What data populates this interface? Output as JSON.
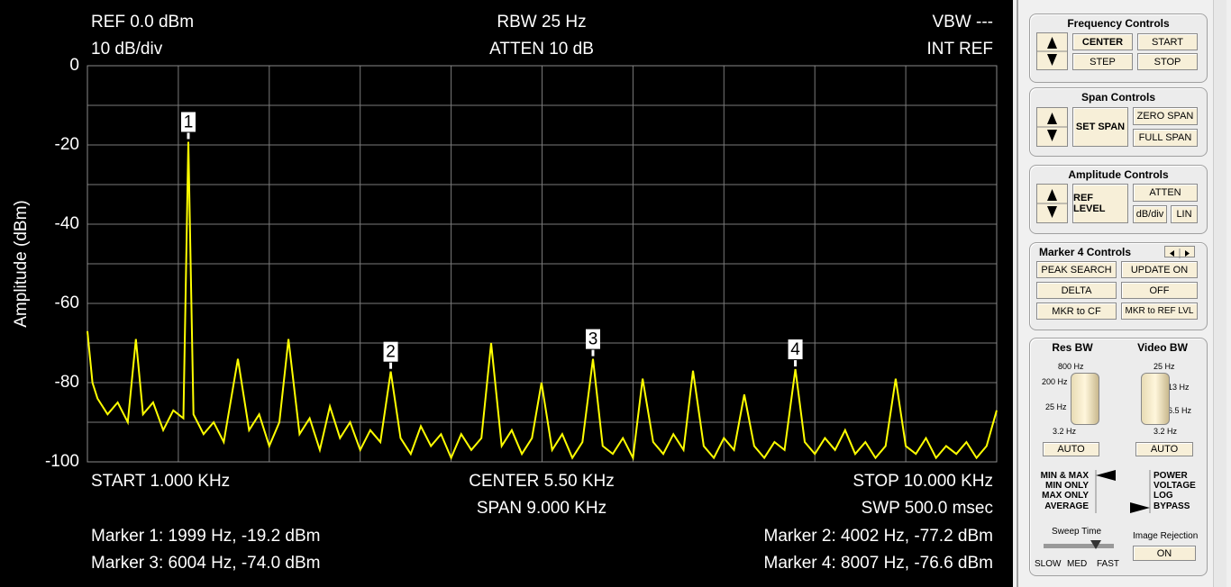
{
  "header": {
    "ref": "REF 0.0 dBm",
    "scale": "10 dB/div",
    "rbw": "RBW 25 Hz",
    "atten": "ATTEN 10 dB",
    "vbw": "VBW ---",
    "intref": "INT REF"
  },
  "chart_data": {
    "type": "line",
    "ylabel": "Amplitude (dBm)",
    "color": "#ffff00",
    "xlim": [
      1000,
      10000
    ],
    "ylim": [
      -100,
      0
    ],
    "yticks": [
      0,
      -20,
      -40,
      -60,
      -80,
      -100
    ],
    "grid": true,
    "x": [
      1000,
      1050,
      1100,
      1200,
      1300,
      1400,
      1480,
      1550,
      1650,
      1750,
      1850,
      1950,
      1999,
      2050,
      2150,
      2250,
      2350,
      2490,
      2600,
      2700,
      2800,
      2900,
      2990,
      3100,
      3200,
      3300,
      3400,
      3500,
      3600,
      3700,
      3800,
      3900,
      4002,
      4100,
      4200,
      4300,
      4400,
      4500,
      4600,
      4700,
      4800,
      4900,
      4996,
      5100,
      5200,
      5300,
      5400,
      5495,
      5600,
      5700,
      5800,
      5900,
      6004,
      6100,
      6200,
      6300,
      6400,
      6495,
      6600,
      6700,
      6800,
      6900,
      6994,
      7100,
      7200,
      7300,
      7400,
      7502,
      7600,
      7700,
      7800,
      7900,
      8007,
      8100,
      8200,
      8300,
      8400,
      8500,
      8600,
      8700,
      8800,
      8900,
      9000,
      9100,
      9200,
      9300,
      9400,
      9500,
      9600,
      9700,
      9800,
      9900,
      10000
    ],
    "values": [
      -67,
      -80,
      -84,
      -88,
      -85,
      -90,
      -69,
      -88,
      -85,
      -92,
      -87,
      -89,
      -19.2,
      -88,
      -93,
      -90,
      -95,
      -74,
      -92,
      -88,
      -96,
      -90,
      -69,
      -93,
      -89,
      -97,
      -86,
      -94,
      -90,
      -97,
      -92,
      -95,
      -77.2,
      -94,
      -98,
      -91,
      -96,
      -93,
      -99,
      -93,
      -97,
      -94,
      -70,
      -96,
      -92,
      -98,
      -94,
      -80,
      -97,
      -93,
      -99,
      -95,
      -74,
      -96,
      -98,
      -94,
      -99,
      -79,
      -95,
      -98,
      -93,
      -97,
      -77,
      -96,
      -99,
      -94,
      -97,
      -83,
      -96,
      -99,
      -95,
      -97,
      -76.6,
      -95,
      -98,
      -94,
      -97,
      -92,
      -98,
      -95,
      -99,
      -96,
      -79,
      -96,
      -98,
      -94,
      -99,
      -96,
      -98,
      -95,
      -99,
      -96,
      -87
    ],
    "markers": [
      {
        "label": "1",
        "x": 1999,
        "y": -19.2
      },
      {
        "label": "2",
        "x": 4002,
        "y": -77.2
      },
      {
        "label": "3",
        "x": 6004,
        "y": -74.0
      },
      {
        "label": "4",
        "x": 8007,
        "y": -76.6
      }
    ]
  },
  "footer": {
    "start": "START 1.000 KHz",
    "center": "CENTER 5.50 KHz",
    "span": "SPAN 9.000 KHz",
    "stop": "STOP 10.000 KHz",
    "sweep": "SWP 500.0 msec",
    "marker1": "Marker 1: 1999 Hz, -19.2 dBm",
    "marker2": "Marker 2: 4002 Hz, -77.2 dBm",
    "marker3": "Marker 3: 6004 Hz, -74.0 dBm",
    "marker4": "Marker 4: 8007 Hz, -76.6 dBm"
  },
  "panel": {
    "frequency": {
      "title": "Frequency Controls",
      "buttons": [
        "CENTER",
        "START",
        "STEP",
        "STOP"
      ]
    },
    "span": {
      "title": "Span Controls",
      "buttons": [
        "SET SPAN",
        "ZERO SPAN",
        "FULL SPAN"
      ]
    },
    "amplitude": {
      "title": "Amplitude Controls",
      "buttons": [
        "REF LEVEL",
        "ATTEN",
        "dB/div",
        "LIN"
      ]
    },
    "marker": {
      "title": "Marker 4 Controls",
      "buttons": [
        "PEAK SEARCH",
        "UPDATE ON",
        "DELTA",
        "OFF",
        "MKR to CF",
        "MKR to REF LVL"
      ]
    },
    "res_bw": {
      "title": "Res BW",
      "scale": [
        "800 Hz",
        "200 Hz",
        "25 Hz",
        "3.2 Hz"
      ],
      "button": "AUTO"
    },
    "video_bw": {
      "title": "Video BW",
      "scale": [
        "25 Hz",
        "13 Hz",
        "6.5 Hz",
        "3.2 Hz"
      ],
      "button": "AUTO"
    },
    "detector": [
      "MIN & MAX",
      "MIN ONLY",
      "MAX ONLY",
      "AVERAGE"
    ],
    "output": [
      "POWER",
      "VOLTAGE",
      "LOG",
      "BYPASS"
    ],
    "sweep": {
      "title": "Sweep Time",
      "labels": [
        "SLOW",
        "MED",
        "FAST"
      ]
    },
    "image_rejection": {
      "title": "Image Rejection",
      "button": "ON"
    }
  }
}
